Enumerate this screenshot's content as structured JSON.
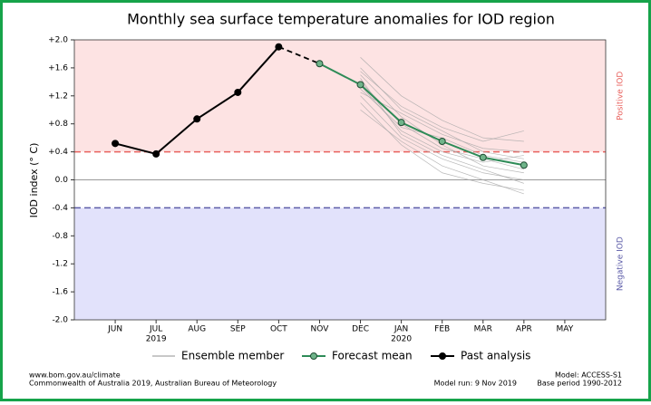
{
  "chart_data": {
    "type": "line",
    "title": "Monthly sea surface temperature anomalies for IOD region",
    "y_label": "IOD index (° C)",
    "categories": [
      "JUN",
      "JUL",
      "AUG",
      "SEP",
      "OCT",
      "NOV",
      "DEC",
      "JAN",
      "FEB",
      "MAR",
      "APR",
      "MAY"
    ],
    "sublabels": [
      null,
      "2019",
      null,
      null,
      null,
      null,
      null,
      "2020",
      null,
      null,
      null,
      null
    ],
    "ylim": [
      -2.0,
      2.0
    ],
    "yticks": [
      {
        "value": 2.0,
        "label": "+2.0"
      },
      {
        "value": 1.6,
        "label": "+1.6"
      },
      {
        "value": 1.2,
        "label": "+1.2"
      },
      {
        "value": 0.8,
        "label": "+0.8"
      },
      {
        "value": 0.4,
        "label": "+0.4"
      },
      {
        "value": 0.0,
        "label": "0.0"
      },
      {
        "value": -0.4,
        "label": "-0.4"
      },
      {
        "value": -0.8,
        "label": "-0.8"
      },
      {
        "value": -1.2,
        "label": "-1.2"
      },
      {
        "value": -1.6,
        "label": "-1.6"
      },
      {
        "value": -2.0,
        "label": "-2.0"
      }
    ],
    "thresholds": [
      {
        "value": 0.4,
        "label": "Positive IOD",
        "color": "#e8625e",
        "fill": "#fde3e3"
      },
      {
        "value": -0.4,
        "label": "Negative IOD",
        "color": "#5c5ca8",
        "fill": "#e2e2fb"
      }
    ],
    "ensemble": {
      "name": "Ensemble member",
      "color": "#a8a8a8",
      "members": [
        [
          null,
          null,
          null,
          null,
          null,
          null,
          1.75,
          1.2,
          0.85,
          0.6,
          0.55,
          null
        ],
        [
          null,
          null,
          null,
          null,
          null,
          null,
          1.6,
          1.0,
          0.7,
          0.4,
          0.3,
          null
        ],
        [
          null,
          null,
          null,
          null,
          null,
          null,
          1.5,
          0.9,
          0.5,
          0.2,
          0.1,
          null
        ],
        [
          null,
          null,
          null,
          null,
          null,
          null,
          1.4,
          0.8,
          0.45,
          0.3,
          0.15,
          null
        ],
        [
          null,
          null,
          null,
          null,
          null,
          null,
          1.3,
          0.75,
          0.6,
          0.35,
          0.25,
          null
        ],
        [
          null,
          null,
          null,
          null,
          null,
          null,
          1.2,
          0.6,
          0.3,
          0.1,
          0.0,
          null
        ],
        [
          null,
          null,
          null,
          null,
          null,
          null,
          1.1,
          0.5,
          0.1,
          -0.05,
          -0.15,
          null
        ],
        [
          null,
          null,
          null,
          null,
          null,
          null,
          1.0,
          0.55,
          0.2,
          0.0,
          -0.2,
          null
        ],
        [
          null,
          null,
          null,
          null,
          null,
          null,
          1.55,
          1.05,
          0.75,
          0.55,
          0.7,
          null
        ],
        [
          null,
          null,
          null,
          null,
          null,
          null,
          1.35,
          0.7,
          0.4,
          0.25,
          0.35,
          null
        ],
        [
          null,
          null,
          null,
          null,
          null,
          null,
          1.25,
          0.95,
          0.65,
          0.45,
          0.4,
          null
        ],
        [
          null,
          null,
          null,
          null,
          null,
          null,
          1.45,
          0.65,
          0.35,
          0.15,
          -0.05,
          null
        ]
      ]
    },
    "series": [
      {
        "name": "Forecast mean",
        "color": "#2e8b57",
        "values": [
          null,
          null,
          null,
          null,
          null,
          1.66,
          1.36,
          0.82,
          0.55,
          0.32,
          0.21,
          null
        ]
      },
      {
        "name": "Past analysis",
        "color": "#000000",
        "values": [
          0.52,
          0.37,
          0.87,
          1.25,
          1.9,
          null,
          null,
          null,
          null,
          null,
          null,
          null
        ]
      }
    ],
    "footer": {
      "left": [
        "www.bom.gov.au/climate",
        "Commonwealth of Australia 2019, Australian Bureau of Meteorology"
      ],
      "center": "Model run: 9 Nov 2019",
      "right": [
        "Model: ACCESS-S1",
        "Base period 1990-2012"
      ]
    }
  }
}
